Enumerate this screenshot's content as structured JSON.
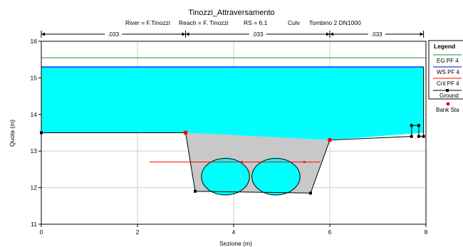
{
  "chart_data": {
    "type": "line",
    "title": "Tinozzi_Attraversamento",
    "subtitle": {
      "river": "River = F.Tinozzi",
      "reach": "Reach = F. Tinozzi",
      "rs": "RS = 6.1",
      "type": "Culv",
      "name": "Tombino 2 DN1000"
    },
    "xlabel": "Sezione (m)",
    "ylabel": "Quota (m)",
    "xlim": [
      0,
      8
    ],
    "ylim": [
      11,
      16
    ],
    "xticks": [
      "0",
      "2",
      "4",
      "6",
      "8"
    ],
    "yticks": [
      "11",
      "12",
      "13",
      "14",
      "15",
      "16"
    ],
    "grid": true,
    "legend_position": "right",
    "manning": [
      {
        "label": ".033",
        "x_from": 0,
        "x_to": 3
      },
      {
        "label": ".033",
        "x_from": 3,
        "x_to": 6
      },
      {
        "label": ".033",
        "x_from": 6,
        "x_to": 7.95
      }
    ],
    "eg_elevation": 15.55,
    "ws_elevation": 15.3,
    "crit_line": {
      "x": [
        2.25,
        5.8
      ],
      "y": [
        12.7,
        12.7
      ]
    },
    "deck": [
      [
        0,
        15.3
      ],
      [
        7.95,
        15.3
      ],
      [
        7.95,
        13.5
      ],
      [
        6,
        13.3
      ],
      [
        3,
        13.5
      ],
      [
        0,
        13.5
      ]
    ],
    "culvert_box": [
      [
        3,
        13.5
      ],
      [
        6,
        13.3
      ],
      [
        5.6,
        11.85
      ],
      [
        3.2,
        11.9
      ]
    ],
    "culverts": [
      {
        "cx": 3.83,
        "cy": 12.3,
        "r": 0.5
      },
      {
        "cx": 4.88,
        "cy": 12.3,
        "r": 0.5
      }
    ],
    "ground": [
      [
        0,
        15.3
      ],
      [
        0,
        13.5
      ],
      [
        3,
        13.5
      ],
      [
        3.2,
        11.9
      ],
      [
        5.6,
        11.85
      ],
      [
        6,
        13.3
      ],
      [
        7.7,
        13.4
      ],
      [
        7.7,
        13.7
      ],
      [
        7.85,
        13.7
      ],
      [
        7.85,
        13.4
      ],
      [
        7.95,
        13.4
      ],
      [
        7.95,
        15.3
      ]
    ],
    "bank_stations": [
      {
        "x": 3,
        "y": 13.5
      },
      {
        "x": 6,
        "y": 13.3
      }
    ],
    "legend": {
      "title": "Legend",
      "entries": [
        "EG PF 4",
        "WS PF 4",
        "Crit PF 4",
        "Ground",
        "Bank Sta"
      ]
    },
    "colors": {
      "water": "#00ffff",
      "deck": "#c8c8c8",
      "eg": "#2e8b2e",
      "ws": "#0000ff",
      "crit": "#ff0000",
      "ground": "#000000",
      "bank": "#ff0000",
      "grid": "#cfcfcf"
    }
  }
}
